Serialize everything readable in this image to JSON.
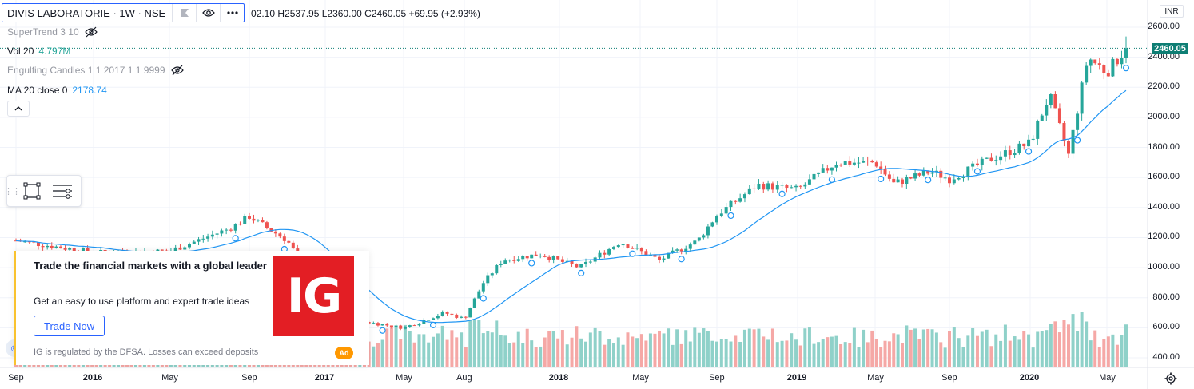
{
  "symbol": {
    "title": "DIVIS LABORATORIE · 1W · NSE",
    "ohlc_text": "02.10  H2537.95  L2360.00  C2460.05  +69.95 (+2.93%)"
  },
  "indicators": {
    "supertrend": "SuperTrend 3 10",
    "vol_label": "Vol 20",
    "vol_value": "4.797M",
    "engulfing": "Engulfing Candles 1 1 2017 1 1 9999",
    "ma_label": "MA 20 close 0",
    "ma_value": "2178.74"
  },
  "price_axis": {
    "currency": "INR",
    "labels": [
      "2600.00",
      "2400.00",
      "2200.00",
      "2000.00",
      "1800.00",
      "1600.00",
      "1400.00",
      "1200.00",
      "1000.00",
      "800.00",
      "600.00",
      "400.00"
    ],
    "last_price": "2460.05"
  },
  "time_axis": {
    "labels": [
      {
        "text": "Sep",
        "bold": false
      },
      {
        "text": "2016",
        "bold": true
      },
      {
        "text": "May",
        "bold": false
      },
      {
        "text": "Sep",
        "bold": false
      },
      {
        "text": "2017",
        "bold": true
      },
      {
        "text": "May",
        "bold": false
      },
      {
        "text": "Aug",
        "bold": false
      },
      {
        "text": "2018",
        "bold": true
      },
      {
        "text": "May",
        "bold": false
      },
      {
        "text": "Sep",
        "bold": false
      },
      {
        "text": "2019",
        "bold": true
      },
      {
        "text": "May",
        "bold": false
      },
      {
        "text": "Sep",
        "bold": false
      },
      {
        "text": "2020",
        "bold": true
      },
      {
        "text": "May",
        "bold": false
      }
    ]
  },
  "ad": {
    "title": "Trade the financial markets with a global leader",
    "description": "Get an easy to use platform and expert trade ideas",
    "cta": "Trade Now",
    "disclaimer": "IG is regulated by the DFSA. Losses can exceed deposits",
    "badge": "Ad",
    "logo_text": "IG"
  },
  "colors": {
    "up": "#26a69a",
    "down": "#ef5350",
    "ma": "#2196f3",
    "vol_up": "#8fd1c9",
    "vol_down": "#f5a8a6",
    "grid": "#f0f3fa",
    "accent": "#2962ff"
  },
  "icons": {
    "flag": "flag-icon",
    "eye": "eye-icon",
    "more": "more-icon",
    "eye_hidden": "eye-crossed-icon",
    "collapse": "chevron-up-icon",
    "rectangle": "rectangle-tool-icon",
    "lines": "lines-tool-icon",
    "settings": "gear-icon"
  },
  "chart_data": {
    "type": "candlestick",
    "timeframe": "1W",
    "x_range": [
      "2015-09",
      "2020-06"
    ],
    "ylim": [
      350,
      2620
    ],
    "anchors": [
      {
        "t": "2015-09",
        "close": 1180
      },
      {
        "t": "2016-01",
        "close": 1100
      },
      {
        "t": "2016-05",
        "close": 1110
      },
      {
        "t": "2016-08",
        "close": 1260
      },
      {
        "t": "2016-09",
        "close": 1340
      },
      {
        "t": "2016-11",
        "close": 1180
      },
      {
        "t": "2017-01",
        "close": 780
      },
      {
        "t": "2017-03",
        "close": 640
      },
      {
        "t": "2017-05",
        "close": 600
      },
      {
        "t": "2017-07",
        "close": 700
      },
      {
        "t": "2017-08",
        "close": 660
      },
      {
        "t": "2017-09",
        "close": 900
      },
      {
        "t": "2017-10",
        "close": 1050
      },
      {
        "t": "2017-12",
        "close": 1090
      },
      {
        "t": "2018-02",
        "close": 1000
      },
      {
        "t": "2018-04",
        "close": 1170
      },
      {
        "t": "2018-06",
        "close": 1050
      },
      {
        "t": "2018-08",
        "close": 1180
      },
      {
        "t": "2018-09",
        "close": 1350
      },
      {
        "t": "2018-11",
        "close": 1550
      },
      {
        "t": "2019-01",
        "close": 1520
      },
      {
        "t": "2019-03",
        "close": 1700
      },
      {
        "t": "2019-05",
        "close": 1700
      },
      {
        "t": "2019-06",
        "close": 1560
      },
      {
        "t": "2019-08",
        "close": 1640
      },
      {
        "t": "2019-09",
        "close": 1590
      },
      {
        "t": "2019-11",
        "close": 1720
      },
      {
        "t": "2020-01",
        "close": 1830
      },
      {
        "t": "2020-02",
        "close": 2150
      },
      {
        "t": "2020-03",
        "close": 1750
      },
      {
        "t": "2020-04",
        "close": 2400
      },
      {
        "t": "2020-05",
        "close": 2300
      },
      {
        "t": "2020-06",
        "close": 2460
      }
    ],
    "last": {
      "high": 2537.95,
      "low": 2360.0,
      "close": 2460.05,
      "change": 69.95,
      "change_pct": 2.93
    },
    "ma_period": 20,
    "ma_last": 2178.74,
    "volume_last": "4.797M"
  }
}
